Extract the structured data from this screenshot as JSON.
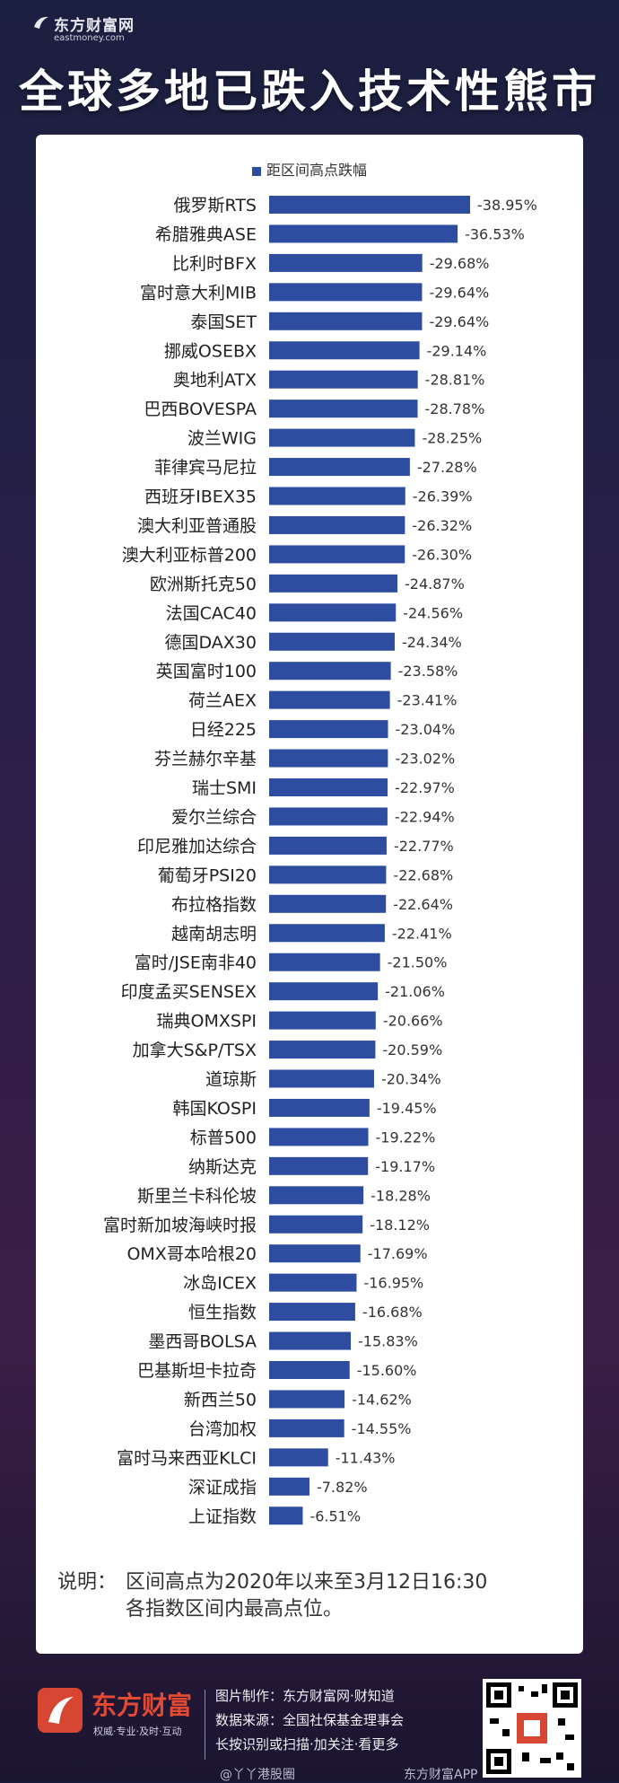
{
  "header": {
    "brand": "东方财富网",
    "domain": "eastmoney.com",
    "title": "全球多地已跌入技术性熊市"
  },
  "chart_data": {
    "type": "bar",
    "orientation": "horizontal",
    "legend": "距区间高点跌幅",
    "legend_position": "top-center",
    "bar_color": "#2e4da0",
    "categories": [
      "俄罗斯RTS",
      "希腊雅典ASE",
      "比利时BFX",
      "富时意大利MIB",
      "泰国SET",
      "挪威OSEBX",
      "奥地利ATX",
      "巴西BOVESPA",
      "波兰WIG",
      "菲律宾马尼拉",
      "西班牙IBEX35",
      "澳大利亚普通股",
      "澳大利亚标普200",
      "欧洲斯托克50",
      "法国CAC40",
      "德国DAX30",
      "英国富时100",
      "荷兰AEX",
      "日经225",
      "芬兰赫尔辛基",
      "瑞士SMI",
      "爱尔兰综合",
      "印尼雅加达综合",
      "葡萄牙PSI20",
      "布拉格指数",
      "越南胡志明",
      "富时/JSE南非40",
      "印度孟买SENSEX",
      "瑞典OMXSPI",
      "加拿大S&P/TSX",
      "道琼斯",
      "韩国KOSPI",
      "标普500",
      "纳斯达克",
      "斯里兰卡科伦坡",
      "富时新加坡海峡时报",
      "OMX哥本哈根20",
      "冰岛ICEX",
      "恒生指数",
      "墨西哥BOLSA",
      "巴基斯坦卡拉奇",
      "新西兰50",
      "台湾加权",
      "富时马来西亚KLCI",
      "深证成指",
      "上证指数"
    ],
    "values": [
      -38.95,
      -36.53,
      -29.68,
      -29.64,
      -29.64,
      -29.14,
      -28.81,
      -28.78,
      -28.25,
      -27.28,
      -26.39,
      -26.32,
      -26.3,
      -24.87,
      -24.56,
      -24.34,
      -23.58,
      -23.41,
      -23.04,
      -23.02,
      -22.97,
      -22.94,
      -22.77,
      -22.68,
      -22.64,
      -22.41,
      -21.5,
      -21.06,
      -20.66,
      -20.59,
      -20.34,
      -19.45,
      -19.22,
      -19.17,
      -18.28,
      -18.12,
      -17.69,
      -16.95,
      -16.68,
      -15.83,
      -15.6,
      -14.62,
      -14.55,
      -11.43,
      -7.82,
      -6.51
    ],
    "labels": [
      "-38.95%",
      "-36.53%",
      "-29.68%",
      "-29.64%",
      "-29.64%",
      "-29.14%",
      "-28.81%",
      "-28.78%",
      "-28.25%",
      "-27.28%",
      "-26.39%",
      "-26.32%",
      "-26.30%",
      "-24.87%",
      "-24.56%",
      "-24.34%",
      "-23.58%",
      "-23.41%",
      "-23.04%",
      "-23.02%",
      "-22.97%",
      "-22.94%",
      "-22.77%",
      "-22.68%",
      "-22.64%",
      "-22.41%",
      "-21.50%",
      "-21.06%",
      "-20.66%",
      "-20.59%",
      "-20.34%",
      "-19.45%",
      "-19.22%",
      "-19.17%",
      "-18.28%",
      "-18.12%",
      "-17.69%",
      "-16.95%",
      "-16.68%",
      "-15.83%",
      "-15.60%",
      "-14.62%",
      "-14.55%",
      "-11.43%",
      "-7.82%",
      "-6.51%"
    ]
  },
  "note": {
    "label": "说明：",
    "line1": "区间高点为2020年以来至3月12日16:30",
    "line2": "各指数区间内最高点位。"
  },
  "footer": {
    "brand": "东方财富",
    "slogan": "权威·专业·及时·互动",
    "line1": "图片制作：东方财富网·财知道",
    "line2": "数据来源：全国社保基金理事会",
    "line3": "长按识别或扫描·加关注·看更多",
    "watermark_left": "@丫丫港股圈",
    "watermark_right": "东方财富APP"
  }
}
